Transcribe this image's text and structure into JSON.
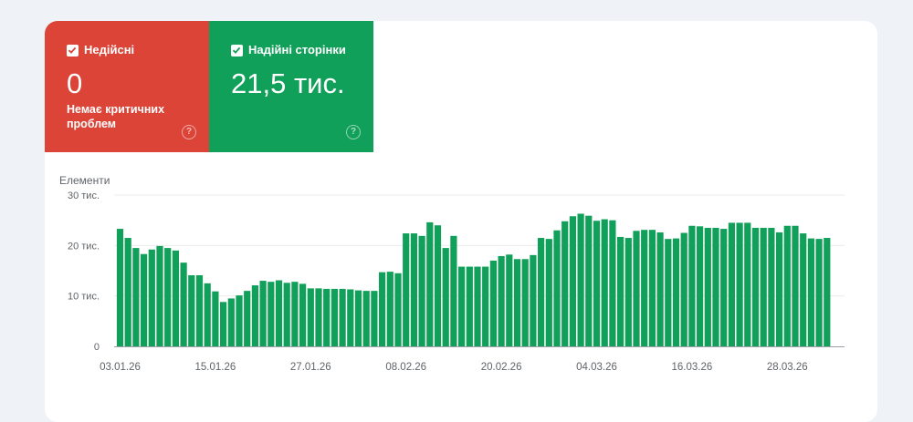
{
  "tiles": {
    "invalid": {
      "label": "Недійсні",
      "value": "0",
      "subtitle": "Немає критичних проблем",
      "color": "#dc4438"
    },
    "valid": {
      "label": "Надійні сторінки",
      "value": "21,5 тис.",
      "color": "#11a05a"
    }
  },
  "chart_data": {
    "type": "bar",
    "ylabel": "Елементи",
    "ylim": [
      0,
      30000
    ],
    "y_ticks": [
      {
        "value": 0,
        "label": "0"
      },
      {
        "value": 10000,
        "label": "10 тис."
      },
      {
        "value": 20000,
        "label": "20 тис."
      },
      {
        "value": 30000,
        "label": "30 тис."
      }
    ],
    "x_ticks": [
      "03.01.26",
      "15.01.26",
      "27.01.26",
      "08.02.26",
      "20.02.26",
      "04.03.26",
      "16.03.26",
      "28.03.26"
    ],
    "x_tick_every": 12,
    "bar_color": "#11a05a",
    "grid": true,
    "values": [
      23300,
      21500,
      19500,
      18300,
      19200,
      19900,
      19500,
      19000,
      16600,
      14100,
      14100,
      12500,
      10900,
      8800,
      9500,
      10100,
      11000,
      12100,
      13000,
      12800,
      13100,
      12600,
      12800,
      12400,
      11500,
      11500,
      11400,
      11400,
      11400,
      11300,
      11100,
      11000,
      11000,
      14700,
      14800,
      14500,
      22400,
      22400,
      21900,
      24600,
      24000,
      19500,
      21900,
      15800,
      15800,
      15800,
      15800,
      17000,
      17900,
      18200,
      17300,
      17300,
      18100,
      21500,
      21300,
      23000,
      24800,
      25800,
      26300,
      25900,
      24900,
      25200,
      25000,
      21700,
      21500,
      22900,
      23100,
      23100,
      22600,
      21300,
      21400,
      22500,
      23900,
      23800,
      23500,
      23500,
      23300,
      24500,
      24500,
      24500,
      23500,
      23500,
      23500,
      22600,
      23900,
      23900,
      22400,
      21400,
      21300,
      21500
    ]
  }
}
